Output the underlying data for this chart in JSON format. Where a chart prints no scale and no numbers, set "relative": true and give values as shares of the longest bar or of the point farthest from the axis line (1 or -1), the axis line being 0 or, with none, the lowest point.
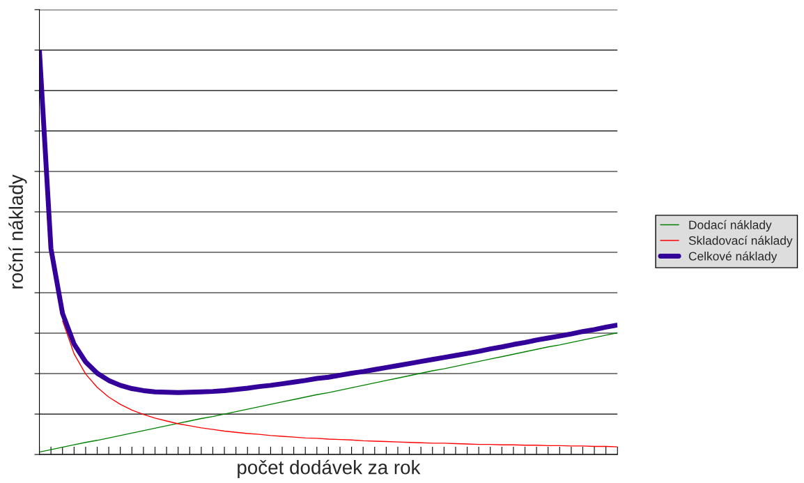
{
  "chart_data": {
    "type": "line",
    "xlabel": "počet dodávek za rok",
    "ylabel": "roční náklady",
    "relative": true,
    "grid": "y",
    "legend": "right",
    "categories": [
      null,
      null,
      null,
      null,
      null,
      null,
      null,
      null,
      null,
      null,
      null,
      null,
      null,
      null,
      null,
      null,
      null,
      null,
      null,
      null,
      null,
      null,
      null,
      null,
      null,
      null,
      null,
      null,
      null,
      null,
      null,
      null,
      null,
      null,
      null,
      null,
      null,
      null,
      null,
      null,
      null,
      null,
      null,
      null,
      null,
      null,
      null,
      null,
      null,
      null,
      null
    ],
    "series": [
      {
        "name": "Dodací náklady",
        "color": "#008000",
        "values": [
          0.006,
          0.012,
          0.018,
          0.024,
          0.03,
          0.035,
          0.041,
          0.047,
          0.053,
          0.059,
          0.065,
          0.071,
          0.077,
          0.083,
          0.089,
          0.094,
          0.1,
          0.106,
          0.112,
          0.118,
          0.124,
          0.13,
          0.136,
          0.142,
          0.148,
          0.153,
          0.159,
          0.165,
          0.171,
          0.177,
          0.183,
          0.189,
          0.195,
          0.201,
          0.207,
          0.212,
          0.218,
          0.224,
          0.23,
          0.236,
          0.242,
          0.248,
          0.254,
          0.26,
          0.266,
          0.271,
          0.277,
          0.283,
          0.289,
          0.295,
          0.301
        ]
      },
      {
        "name": "Skladovací náklady",
        "color": "#ff0000",
        "values": [
          null,
          null,
          0.331,
          0.249,
          0.199,
          0.166,
          0.142,
          0.124,
          0.11,
          0.099,
          0.09,
          0.083,
          0.076,
          0.071,
          0.066,
          0.062,
          0.058,
          0.055,
          0.052,
          0.05,
          0.047,
          0.045,
          0.043,
          0.041,
          0.04,
          0.038,
          0.037,
          0.036,
          0.034,
          0.033,
          0.032,
          0.031,
          0.03,
          0.029,
          0.028,
          0.028,
          0.027,
          0.026,
          0.025,
          0.025,
          0.024,
          0.024,
          0.023,
          0.023,
          0.022,
          0.022,
          0.021,
          0.021,
          0.02,
          0.02,
          0.019
        ]
      },
      {
        "name": "Celkové náklady",
        "color": "#330099",
        "values": [
          1.0,
          0.509,
          0.349,
          0.273,
          0.229,
          0.201,
          0.183,
          0.171,
          0.163,
          0.158,
          0.155,
          0.154,
          0.153,
          0.154,
          0.155,
          0.156,
          0.158,
          0.161,
          0.164,
          0.168,
          0.171,
          0.175,
          0.179,
          0.183,
          0.188,
          0.191,
          0.196,
          0.201,
          0.205,
          0.21,
          0.215,
          0.22,
          0.225,
          0.23,
          0.235,
          0.24,
          0.245,
          0.25,
          0.255,
          0.261,
          0.266,
          0.272,
          0.277,
          0.283,
          0.288,
          0.293,
          0.298,
          0.304,
          0.309,
          0.315,
          0.32
        ]
      }
    ]
  }
}
